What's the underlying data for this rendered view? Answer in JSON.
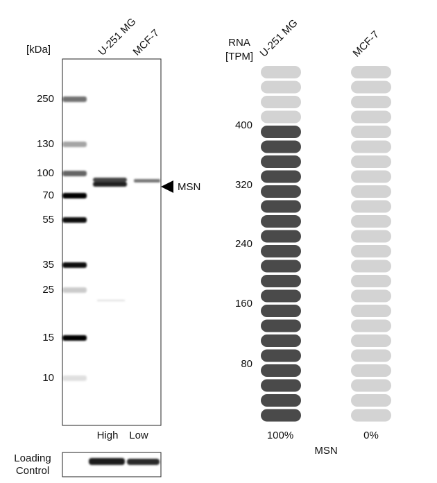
{
  "blot": {
    "unit_label": "[kDa]",
    "lanes": [
      "U-251 MG",
      "MCF-7"
    ],
    "markers": [
      "250",
      "130",
      "100",
      "70",
      "55",
      "35",
      "25",
      "15",
      "10"
    ],
    "target": "MSN",
    "expression": [
      "High",
      "Low"
    ],
    "loading_control": [
      "Loading",
      "Control"
    ]
  },
  "rna": {
    "axis_title": [
      "RNA",
      "[TPM]"
    ],
    "cell_lines": [
      "U-251 MG",
      "MCF-7"
    ],
    "ticks": [
      "400",
      "320",
      "240",
      "160",
      "80"
    ],
    "percentages": [
      "100%",
      "0%"
    ],
    "gene": "MSN"
  }
}
